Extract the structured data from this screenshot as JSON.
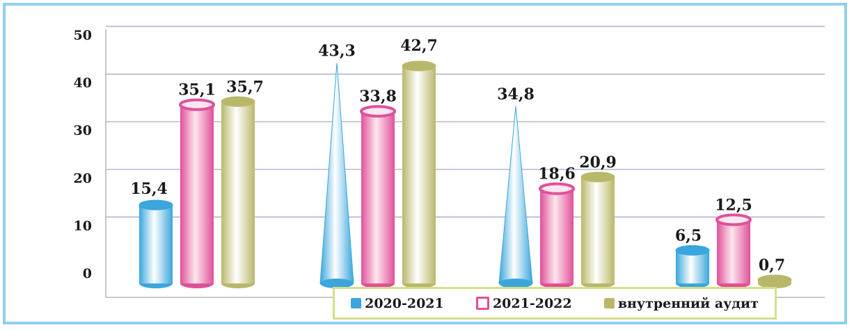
{
  "chart_data": {
    "type": "bar",
    "categories": [
      "",
      "",
      "",
      ""
    ],
    "series": [
      {
        "name": "2020-2021",
        "values": [
          15.4,
          43.3,
          34.8,
          6.5
        ],
        "color": "#3aa6dc",
        "labels": [
          "15,4",
          "43,3",
          "34,8",
          "6,5"
        ],
        "shapes": [
          "cylinder",
          "cone",
          "cone",
          "cylinder"
        ]
      },
      {
        "name": "2021-2022",
        "values": [
          35.1,
          33.8,
          18.6,
          12.5
        ],
        "color": "#e0509a",
        "labels": [
          "35,1",
          "33,8",
          "18,6",
          "12,5"
        ],
        "shapes": [
          "cylinder",
          "cylinder",
          "cylinder",
          "cylinder"
        ]
      },
      {
        "name": "внутренний аудит",
        "values": [
          35.7,
          42.7,
          20.9,
          0.7
        ],
        "color": "#b9b86a",
        "labels": [
          "35,7",
          "42,7",
          "20,9",
          "0,7"
        ],
        "shapes": [
          "cylinder",
          "cylinder",
          "cylinder",
          "cylinder"
        ]
      }
    ],
    "y_ticks": [
      "0",
      "10",
      "20",
      "30",
      "40",
      "50"
    ],
    "ylim": [
      0,
      50
    ],
    "grid": true,
    "legend_position": "bottom-right",
    "frame_color": "#8fd0f0",
    "legend_border_color": "#d5df8a"
  },
  "legend": {
    "items": [
      {
        "label": "2020-2021",
        "color": "#3aa6dc"
      },
      {
        "label": "2021-2022",
        "color": "#e0509a"
      },
      {
        "label": "внутренний  аудит",
        "color": "#b9b86a"
      }
    ]
  }
}
